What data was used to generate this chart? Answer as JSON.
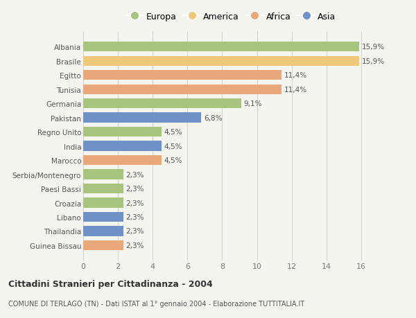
{
  "categories": [
    "Guinea Bissau",
    "Thailandia",
    "Libano",
    "Croazia",
    "Paesi Bassi",
    "Serbia/Montenegro",
    "Marocco",
    "India",
    "Regno Unito",
    "Pakistan",
    "Germania",
    "Tunisia",
    "Egitto",
    "Brasile",
    "Albania"
  ],
  "values": [
    2.3,
    2.3,
    2.3,
    2.3,
    2.3,
    2.3,
    4.5,
    4.5,
    4.5,
    6.8,
    9.1,
    11.4,
    11.4,
    15.9,
    15.9
  ],
  "continents": [
    "Africa",
    "Asia",
    "Asia",
    "Europa",
    "Europa",
    "Europa",
    "Africa",
    "Asia",
    "Europa",
    "Asia",
    "Europa",
    "Africa",
    "Africa",
    "America",
    "Europa"
  ],
  "colors": {
    "Europa": "#a8c47e",
    "America": "#f0c87a",
    "Africa": "#e8a87a",
    "Asia": "#7090c8"
  },
  "labels": [
    "2,3%",
    "2,3%",
    "2,3%",
    "2,3%",
    "2,3%",
    "2,3%",
    "4,5%",
    "4,5%",
    "4,5%",
    "6,8%",
    "9,1%",
    "11,4%",
    "11,4%",
    "15,9%",
    "15,9%"
  ],
  "title": "Cittadini Stranieri per Cittadinanza - 2004",
  "subtitle": "COMUNE DI TERLAGO (TN) - Dati ISTAT al 1° gennaio 2004 - Elaborazione TUTTITALIA.IT",
  "xlim": [
    0,
    17
  ],
  "xticks": [
    0,
    2,
    4,
    6,
    8,
    10,
    12,
    14,
    16
  ],
  "legend_labels": [
    "Europa",
    "America",
    "Africa",
    "Asia"
  ],
  "background_color": "#f5f5f0",
  "bar_height": 0.7
}
